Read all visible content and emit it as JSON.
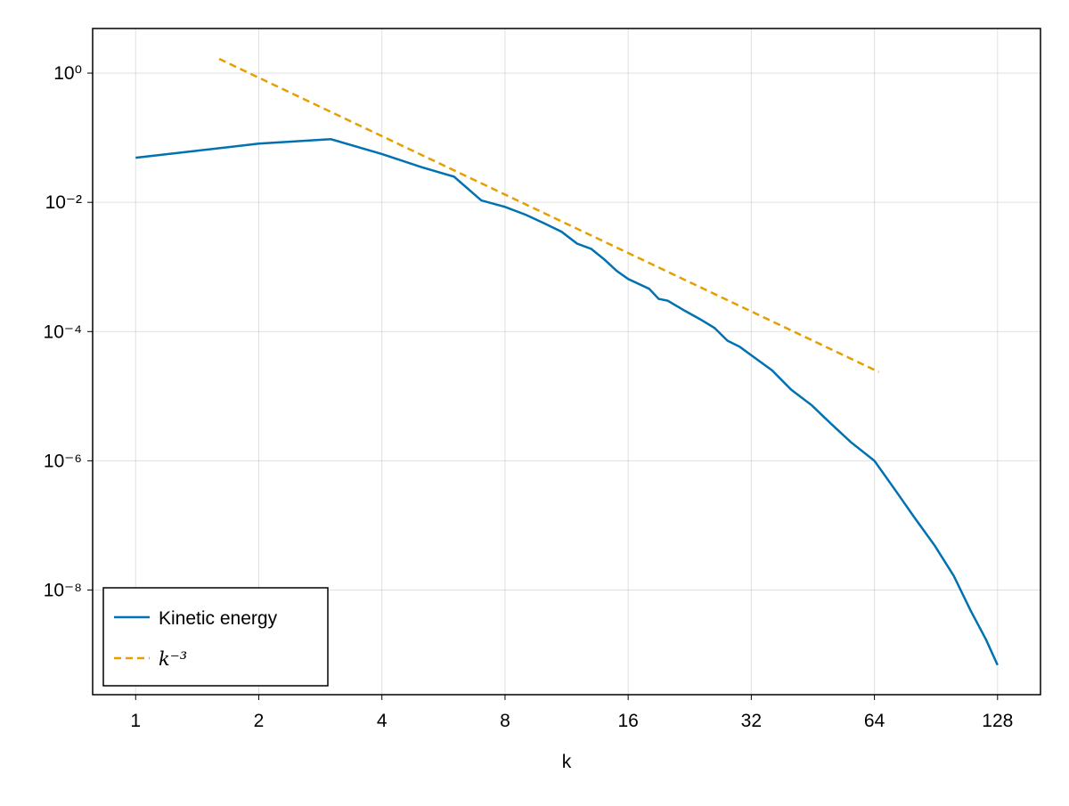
{
  "chart_data": {
    "type": "line",
    "xlabel": "k",
    "xscale": "log",
    "yscale": "log",
    "xlim": [
      0.785,
      163
    ],
    "ylim": [
      2.4e-10,
      4.9
    ],
    "xticks": [
      1,
      2,
      4,
      8,
      16,
      32,
      64,
      128
    ],
    "yticks": [
      {
        "value": 1,
        "label": "10⁰"
      },
      {
        "value": 0.01,
        "label": "10⁻²"
      },
      {
        "value": 0.0001,
        "label": "10⁻⁴"
      },
      {
        "value": 1e-06,
        "label": "10⁻⁶"
      },
      {
        "value": 1e-08,
        "label": "10⁻⁸"
      }
    ],
    "grid": true,
    "legend": "bottom-left",
    "series": [
      {
        "name": "Kinetic energy",
        "color": "#0072b2",
        "linestyle": "solid",
        "x": [
          1,
          2,
          3,
          4,
          5,
          6,
          7,
          8,
          9,
          10,
          11,
          12,
          13,
          14,
          15,
          16,
          18,
          19,
          20,
          22,
          24,
          26,
          28,
          30,
          32,
          36,
          40,
          45,
          50,
          56,
          64,
          72,
          80,
          90,
          100,
          110,
          120,
          128
        ],
        "values": [
          0.049,
          0.081,
          0.095,
          0.056,
          0.035,
          0.025,
          0.0107,
          0.0085,
          0.0064,
          0.0047,
          0.0035,
          0.0023,
          0.0019,
          0.0013,
          0.00087,
          0.00065,
          0.00046,
          0.00032,
          0.0003,
          0.00021,
          0.000155,
          0.000114,
          7.2e-05,
          5.8e-05,
          4.3e-05,
          2.5e-05,
          1.27e-05,
          7.2e-06,
          3.8e-06,
          1.95e-06,
          1e-06,
          3.5e-07,
          1.35e-07,
          4.8e-08,
          1.66e-08,
          4.8e-09,
          1.7e-09,
          6.9e-10
        ]
      },
      {
        "name": "k⁻³",
        "color": "#e69f00",
        "linestyle": "dashed",
        "x": [
          1.6,
          65.6
        ],
        "values": [
          1.66,
          2.37e-05
        ]
      }
    ]
  }
}
